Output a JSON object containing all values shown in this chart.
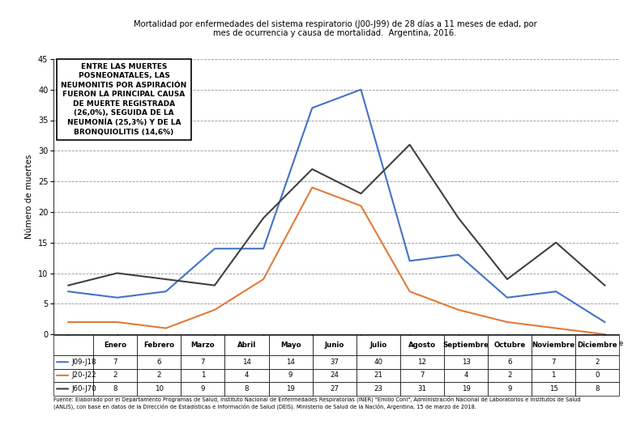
{
  "title_line1": "Mortalidad por enfermedades del sistema respiratorio (J00-J99) de 28 días a 11 meses de edad, por",
  "title_line2": "mes de ocurrencia y causa de mortalidad.  Argentina, 2016.",
  "ylabel": "Número de muertes",
  "months": [
    "Enero",
    "Febrero",
    "Marzo",
    "Abril",
    "Mayo",
    "Junio",
    "Julio",
    "Agosto",
    "Septiembre",
    "Octubre",
    "Noviembre",
    "Diciembre"
  ],
  "series": [
    {
      "label": "J09-J18",
      "color": "#4472C4",
      "values": [
        7,
        6,
        7,
        14,
        14,
        37,
        40,
        12,
        13,
        6,
        7,
        2
      ]
    },
    {
      "label": "J20-J22",
      "color": "#E07B39",
      "values": [
        2,
        2,
        1,
        4,
        9,
        24,
        21,
        7,
        4,
        2,
        1,
        0
      ]
    },
    {
      "label": "J60-J70",
      "color": "#404040",
      "values": [
        8,
        10,
        9,
        8,
        19,
        27,
        23,
        31,
        19,
        9,
        15,
        8
      ]
    }
  ],
  "ylim": [
    0,
    45
  ],
  "yticks": [
    0,
    5,
    10,
    15,
    20,
    25,
    30,
    35,
    40,
    45
  ],
  "annotation": "ENTRE LAS MUERTES\nPOSNEONATALES, LAS\nNEUMONITIS POR ASPIRACIÓN\nFUERON LA PRINCIPAL CAUSA\nDE MUERTE REGISTRADA\n(26,0%), SEGUIDA DE LA\nNEUMONÍA (25,3%) Y DE LA\nBRONQUIOLITIS (14,6%)",
  "footnote": "Fuente: Elaborado por el Departamento Programas de Salud, Instituto Nacional de Enfermedades Respiratorias (INER) \"Emilio Coni\", Administración Nacional de Laboratorios e Institutos de Salud\n(ANLIS), con base en datos de la Dirección de Estadísticas e Información de Salud (DEIS). Ministerio de Salud de la Nación, Argentina, 15 de marzo de 2018.",
  "bg_color": "#FFFFFF",
  "grid_color": "#888888",
  "line_width": 1.5
}
